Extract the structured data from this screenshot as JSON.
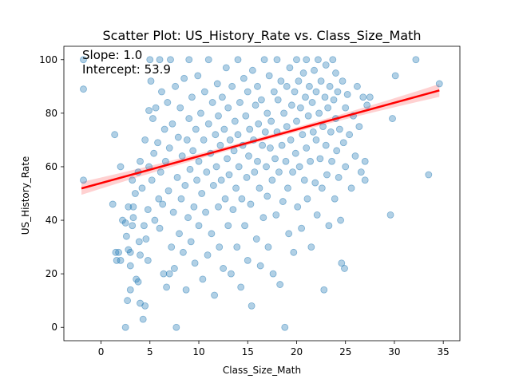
{
  "chart_data": {
    "type": "scatter",
    "title": "Scatter Plot: US_History_Rate vs. Class_Size_Math",
    "xlabel": "Class_Size_Math",
    "ylabel": "US_History_Rate",
    "xlim": [
      -3.8,
      36.7
    ],
    "ylim": [
      -5,
      105
    ],
    "x_ticks": [
      0,
      5,
      10,
      15,
      20,
      25,
      30,
      35
    ],
    "y_ticks": [
      0,
      20,
      40,
      60,
      80,
      100
    ],
    "grid": false,
    "annotations": [
      "Slope: 1.0",
      "Intercept: 53.9"
    ],
    "regression": {
      "slope": 1.0,
      "intercept": 53.9,
      "x_range": [
        -2,
        34.6
      ],
      "ci_halfwidth_ends": 2.4,
      "ci_halfwidth_mid": 0.8
    },
    "colors": {
      "points": "#1f77b4",
      "line": "#ff0000",
      "band": "#ff9999"
    },
    "series": [
      {
        "values_xy": [
          [
            -1.8,
            100
          ],
          [
            -1.8,
            89
          ],
          [
            -1.8,
            55
          ],
          [
            1.2,
            46
          ],
          [
            1.4,
            72
          ],
          [
            1.5,
            28
          ],
          [
            1.6,
            25
          ],
          [
            1.8,
            28
          ],
          [
            2.0,
            60
          ],
          [
            2.0,
            25
          ],
          [
            2.2,
            40
          ],
          [
            2.5,
            39
          ],
          [
            2.5,
            0
          ],
          [
            2.6,
            34
          ],
          [
            2.7,
            10
          ],
          [
            2.8,
            45
          ],
          [
            2.8,
            29
          ],
          [
            3.0,
            28
          ],
          [
            3.0,
            23
          ],
          [
            3.0,
            14
          ],
          [
            3.2,
            38
          ],
          [
            3.2,
            55
          ],
          [
            3.3,
            41
          ],
          [
            3.3,
            45
          ],
          [
            3.5,
            50
          ],
          [
            3.6,
            18
          ],
          [
            3.8,
            58
          ],
          [
            3.8,
            17
          ],
          [
            3.9,
            32
          ],
          [
            4.0,
            62
          ],
          [
            4.0,
            27
          ],
          [
            4.0,
            9
          ],
          [
            4.2,
            52
          ],
          [
            4.3,
            3
          ],
          [
            4.4,
            38
          ],
          [
            4.5,
            8
          ],
          [
            4.5,
            70
          ],
          [
            4.6,
            33
          ],
          [
            4.8,
            44
          ],
          [
            4.8,
            25
          ],
          [
            4.9,
            81
          ],
          [
            4.9,
            60
          ],
          [
            5.0,
            100
          ],
          [
            5.1,
            92
          ],
          [
            5.2,
            55
          ],
          [
            5.3,
            78
          ],
          [
            5.4,
            65
          ],
          [
            5.5,
            40
          ],
          [
            5.6,
            82
          ],
          [
            5.8,
            69
          ],
          [
            5.9,
            48
          ],
          [
            6.0,
            100
          ],
          [
            6.0,
            37
          ],
          [
            6.1,
            58
          ],
          [
            6.2,
            88
          ],
          [
            6.3,
            46
          ],
          [
            6.4,
            20
          ],
          [
            6.5,
            74
          ],
          [
            6.6,
            62
          ],
          [
            6.7,
            15
          ],
          [
            6.8,
            84
          ],
          [
            6.9,
            51
          ],
          [
            7.0,
            20
          ],
          [
            7.0,
            67
          ],
          [
            7.1,
            100
          ],
          [
            7.2,
            30
          ],
          [
            7.3,
            76
          ],
          [
            7.4,
            43
          ],
          [
            7.5,
            22
          ],
          [
            7.6,
            90
          ],
          [
            7.7,
            0
          ],
          [
            7.8,
            56
          ],
          [
            7.9,
            71
          ],
          [
            8.0,
            35
          ],
          [
            8.1,
            82
          ],
          [
            8.2,
            48
          ],
          [
            8.3,
            64
          ],
          [
            8.4,
            28
          ],
          [
            8.5,
            93
          ],
          [
            8.6,
            53
          ],
          [
            8.7,
            14
          ],
          [
            8.8,
            70
          ],
          [
            8.9,
            41
          ],
          [
            9.0,
            100
          ],
          [
            9.0,
            78
          ],
          [
            9.1,
            59
          ],
          [
            9.2,
            32
          ],
          [
            9.3,
            86
          ],
          [
            9.4,
            66
          ],
          [
            9.5,
            45
          ],
          [
            9.6,
            24
          ],
          [
            9.7,
            74
          ],
          [
            9.8,
            55
          ],
          [
            9.9,
            94
          ],
          [
            10.0,
            62
          ],
          [
            10.0,
            38
          ],
          [
            10.2,
            80
          ],
          [
            10.3,
            50
          ],
          [
            10.4,
            18
          ],
          [
            10.5,
            70
          ],
          [
            10.6,
            88
          ],
          [
            10.7,
            43
          ],
          [
            10.8,
            58
          ],
          [
            10.9,
            27
          ],
          [
            11.0,
            100
          ],
          [
            11.0,
            76
          ],
          [
            11.2,
            65
          ],
          [
            11.3,
            35
          ],
          [
            11.4,
            84
          ],
          [
            11.5,
            53
          ],
          [
            11.6,
            12
          ],
          [
            11.7,
            72
          ],
          [
            11.8,
            60
          ],
          [
            11.9,
            91
          ],
          [
            12.0,
            45
          ],
          [
            12.0,
            79
          ],
          [
            12.1,
            30
          ],
          [
            12.2,
            68
          ],
          [
            12.3,
            55
          ],
          [
            12.4,
            86
          ],
          [
            12.5,
            22
          ],
          [
            12.6,
            74
          ],
          [
            12.7,
            48
          ],
          [
            12.8,
            97
          ],
          [
            12.9,
            63
          ],
          [
            13.0,
            38
          ],
          [
            13.0,
            82
          ],
          [
            13.1,
            57
          ],
          [
            13.2,
            70
          ],
          [
            13.3,
            20
          ],
          [
            13.4,
            90
          ],
          [
            13.5,
            44
          ],
          [
            13.6,
            66
          ],
          [
            13.7,
            77
          ],
          [
            13.8,
            52
          ],
          [
            13.9,
            30
          ],
          [
            14.0,
            100
          ],
          [
            14.0,
            72
          ],
          [
            14.1,
            60
          ],
          [
            14.2,
            84
          ],
          [
            14.3,
            15
          ],
          [
            14.4,
            48
          ],
          [
            14.5,
            68
          ],
          [
            14.6,
            93
          ],
          [
            14.7,
            38
          ],
          [
            14.8,
            79
          ],
          [
            14.9,
            56
          ],
          [
            15.0,
            25
          ],
          [
            15.0,
            88
          ],
          [
            15.1,
            64
          ],
          [
            15.2,
            74
          ],
          [
            15.3,
            46
          ],
          [
            15.4,
            8
          ],
          [
            15.5,
            96
          ],
          [
            15.6,
            70
          ],
          [
            15.7,
            58
          ],
          [
            15.8,
            83
          ],
          [
            15.9,
            33
          ],
          [
            16.0,
            62
          ],
          [
            16.0,
            90
          ],
          [
            16.1,
            76
          ],
          [
            16.2,
            52
          ],
          [
            16.3,
            23
          ],
          [
            16.4,
            85
          ],
          [
            16.5,
            68
          ],
          [
            16.6,
            41
          ],
          [
            16.7,
            100
          ],
          [
            16.8,
            73
          ],
          [
            16.9,
            60
          ],
          [
            17.0,
            80
          ],
          [
            17.0,
            49
          ],
          [
            17.1,
            30
          ],
          [
            17.2,
            94
          ],
          [
            17.3,
            67
          ],
          [
            17.4,
            77
          ],
          [
            17.5,
            55
          ],
          [
            17.6,
            20
          ],
          [
            17.7,
            88
          ],
          [
            17.8,
            63
          ],
          [
            17.9,
            42
          ],
          [
            18.0,
            100
          ],
          [
            18.0,
            73
          ],
          [
            18.1,
            85
          ],
          [
            18.2,
            58
          ],
          [
            18.3,
            16
          ],
          [
            18.4,
            92
          ],
          [
            18.5,
            68
          ],
          [
            18.6,
            47
          ],
          [
            18.7,
            80
          ],
          [
            18.8,
            0
          ],
          [
            18.9,
            62
          ],
          [
            19.0,
            90
          ],
          [
            19.0,
            75
          ],
          [
            19.1,
            52
          ],
          [
            19.2,
            35
          ],
          [
            19.3,
            97
          ],
          [
            19.4,
            70
          ],
          [
            19.5,
            83
          ],
          [
            19.6,
            58
          ],
          [
            19.7,
            28
          ],
          [
            19.8,
            88
          ],
          [
            19.9,
            65
          ],
          [
            20.0,
            100
          ],
          [
            20.0,
            77
          ],
          [
            20.1,
            45
          ],
          [
            20.2,
            92
          ],
          [
            20.3,
            60
          ],
          [
            20.4,
            82
          ],
          [
            20.5,
            37
          ],
          [
            20.6,
            72
          ],
          [
            20.7,
            95
          ],
          [
            20.8,
            55
          ],
          [
            20.9,
            86
          ],
          [
            21.0,
            67
          ],
          [
            21.0,
            100
          ],
          [
            21.1,
            48
          ],
          [
            21.2,
            79
          ],
          [
            21.3,
            90
          ],
          [
            21.4,
            62
          ],
          [
            21.5,
            30
          ],
          [
            21.6,
            84
          ],
          [
            21.7,
            73
          ],
          [
            21.8,
            96
          ],
          [
            21.9,
            54
          ],
          [
            22.0,
            88
          ],
          [
            22.0,
            70
          ],
          [
            22.1,
            42
          ],
          [
            22.2,
            100
          ],
          [
            22.3,
            80
          ],
          [
            22.4,
            63
          ],
          [
            22.5,
            92
          ],
          [
            22.6,
            52
          ],
          [
            22.7,
            75
          ],
          [
            22.8,
            14
          ],
          [
            22.9,
            86
          ],
          [
            23.0,
            68
          ],
          [
            23.0,
            98
          ],
          [
            23.1,
            57
          ],
          [
            23.2,
            82
          ],
          [
            23.3,
            38
          ],
          [
            23.4,
            90
          ],
          [
            23.5,
            73
          ],
          [
            23.6,
            62
          ],
          [
            23.7,
            100
          ],
          [
            23.8,
            85
          ],
          [
            23.9,
            48
          ],
          [
            24.0,
            78
          ],
          [
            24.0,
            95
          ],
          [
            24.1,
            66
          ],
          [
            24.2,
            88
          ],
          [
            24.3,
            56
          ],
          [
            24.4,
            74
          ],
          [
            24.5,
            40
          ],
          [
            24.6,
            24
          ],
          [
            24.7,
            92
          ],
          [
            24.8,
            69
          ],
          [
            24.9,
            22
          ],
          [
            25.0,
            82
          ],
          [
            25.0,
            60
          ],
          [
            25.2,
            87
          ],
          [
            25.4,
            72
          ],
          [
            25.6,
            52
          ],
          [
            25.8,
            79
          ],
          [
            26.0,
            64
          ],
          [
            26.2,
            90
          ],
          [
            26.4,
            75
          ],
          [
            26.6,
            58
          ],
          [
            26.8,
            86
          ],
          [
            27.0,
            62
          ],
          [
            27.0,
            55
          ],
          [
            27.2,
            83
          ],
          [
            27.5,
            86
          ],
          [
            29.6,
            42
          ],
          [
            29.8,
            78
          ],
          [
            30.1,
            94
          ],
          [
            32.2,
            100
          ],
          [
            33.5,
            57
          ],
          [
            34.6,
            91
          ]
        ]
      }
    ]
  }
}
